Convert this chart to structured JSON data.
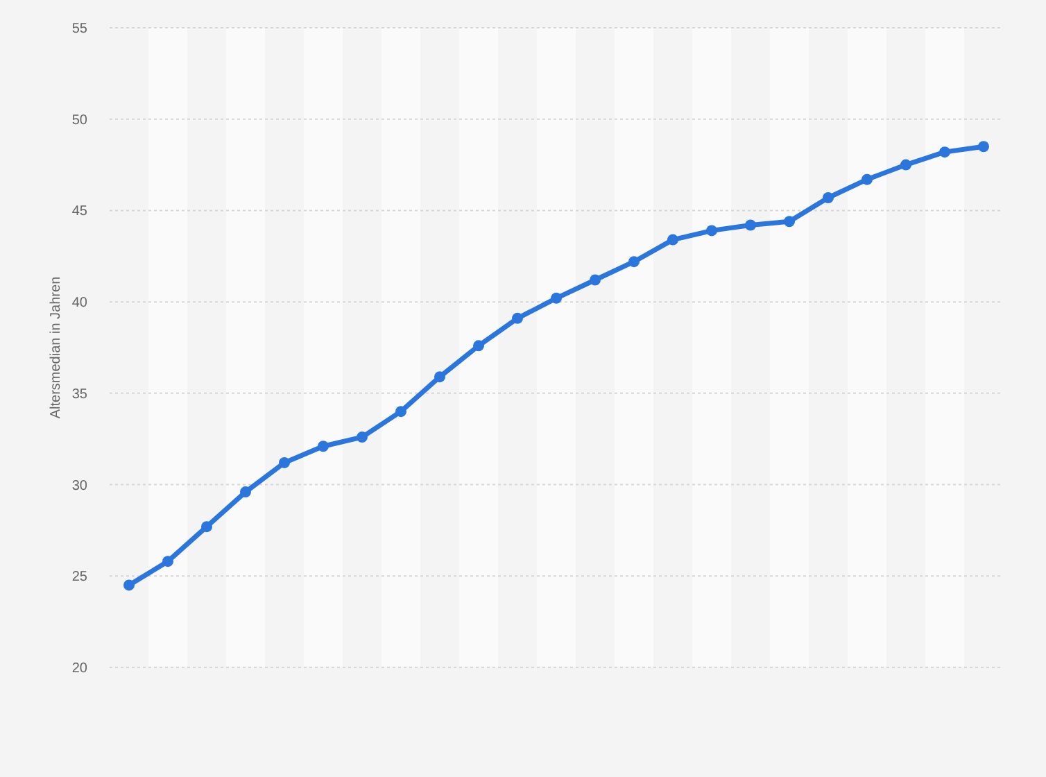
{
  "chart_data": {
    "type": "line",
    "ylabel": "Altersmedian in Jahren",
    "categories": [
      null,
      null,
      null,
      null,
      null,
      null,
      null,
      null,
      null,
      null,
      null,
      null,
      null,
      null,
      null,
      null,
      null,
      null,
      null,
      null,
      null,
      null,
      null
    ],
    "series": [
      {
        "color": "#2a76dd",
        "values": [
          24.5,
          25.8,
          27.7,
          29.6,
          31.2,
          32.1,
          32.6,
          34.0,
          35.9,
          37.6,
          39.1,
          40.2,
          41.2,
          42.2,
          43.4,
          43.9,
          44.2,
          44.4,
          45.7,
          46.7,
          47.5,
          48.2,
          48.5
        ]
      }
    ],
    "ylim": [
      20,
      55
    ],
    "yticks": [
      20,
      25,
      30,
      35,
      40,
      45,
      50,
      55
    ],
    "grid": "y",
    "marker": "circle",
    "line_style": "solid",
    "tick_labels": "y"
  }
}
